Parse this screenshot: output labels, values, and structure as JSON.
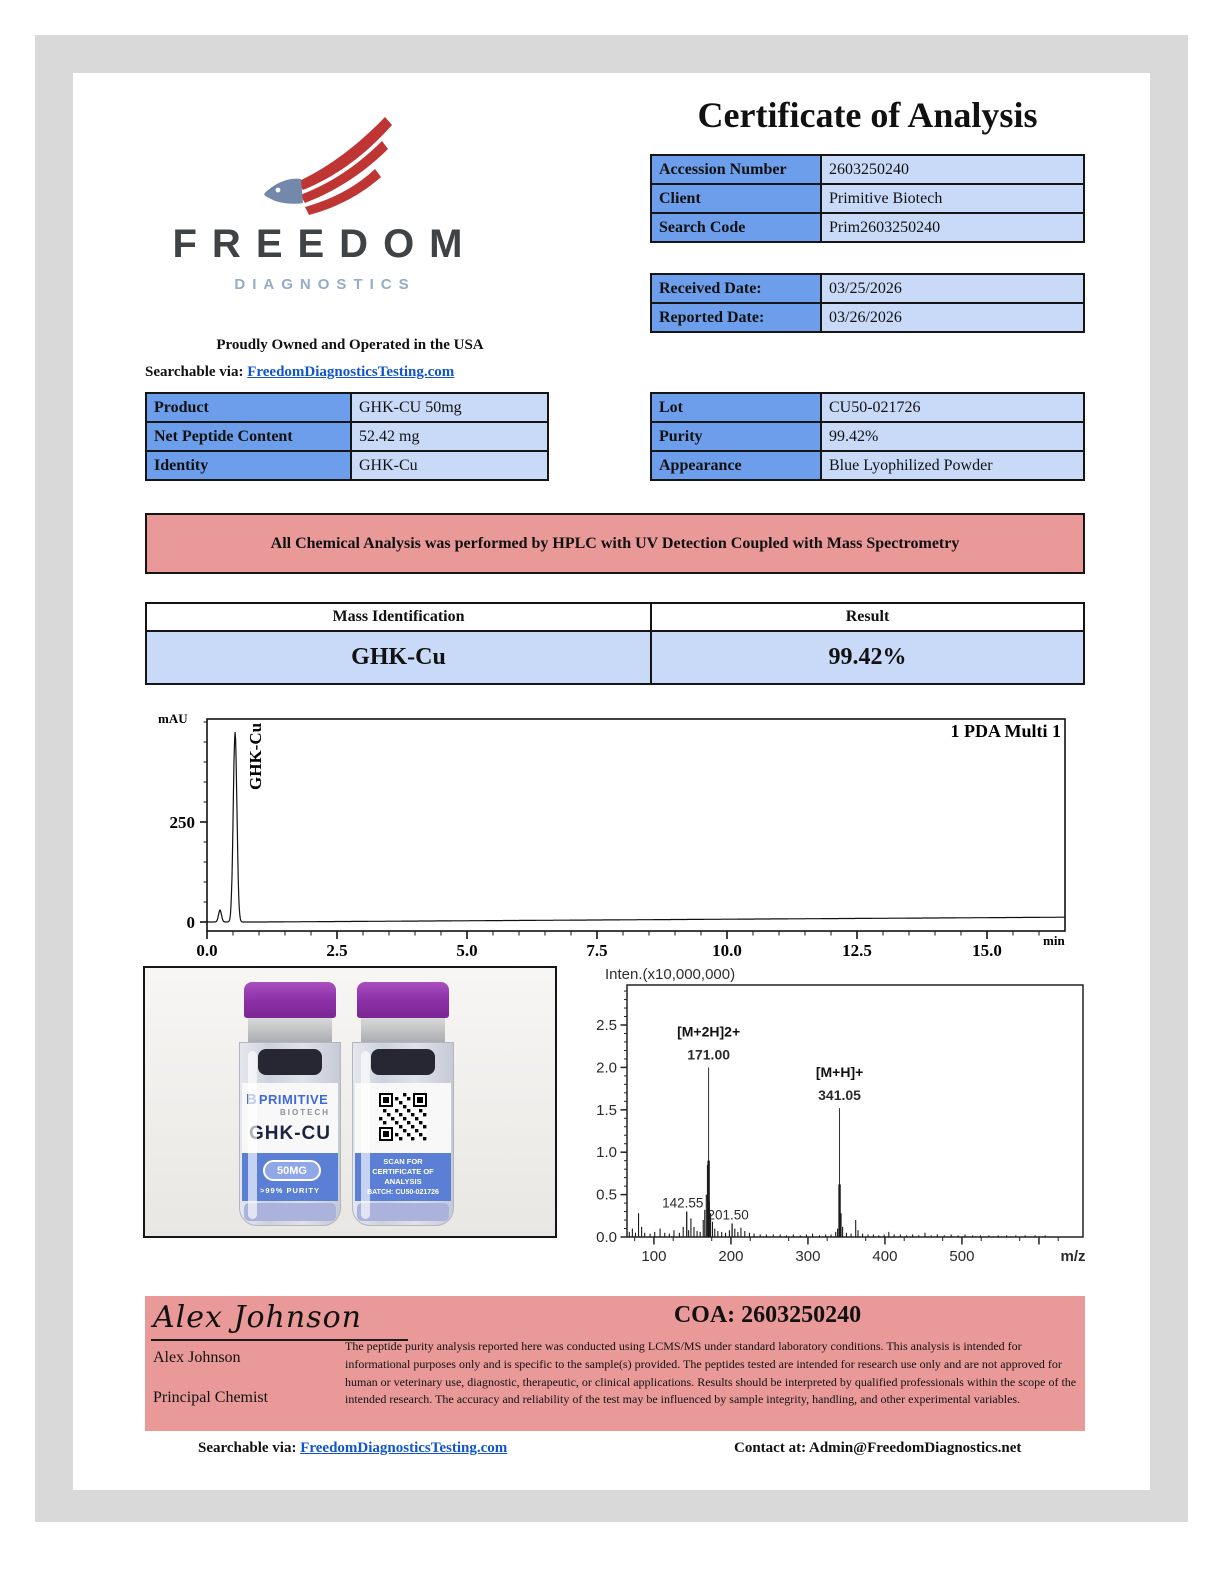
{
  "page": {
    "frame_color": "#d9d9d9",
    "header_blue": "#6d9eeb",
    "cell_blue": "#c9daf8",
    "banner_pink": "#ea9999",
    "link_blue": "#1155cc"
  },
  "header": {
    "title": "Certificate of Analysis",
    "logo": {
      "name": "FREEDOM",
      "subname": "DIAGNOSTICS",
      "tagline": "Proudly Owned and Operated in the USA"
    },
    "searchable_prefix": "Searchable via:",
    "searchable_link": "FreedomDiagnosticsTesting.com"
  },
  "accession_table": {
    "rows": [
      {
        "label": "Accession Number",
        "value": "2603250240"
      },
      {
        "label": "Client",
        "value": "Primitive Biotech"
      },
      {
        "label": "Search Code",
        "value": "Prim2603250240"
      }
    ]
  },
  "dates_table": {
    "rows": [
      {
        "label": "Received Date:",
        "value": "03/25/2026"
      },
      {
        "label": "Reported Date:",
        "value": "03/26/2026"
      }
    ]
  },
  "product_table": {
    "rows": [
      {
        "label": "Product",
        "value": "GHK-CU 50mg"
      },
      {
        "label": "Net Peptide Content",
        "value": "52.42 mg"
      },
      {
        "label": "Identity",
        "value": "GHK-Cu"
      }
    ]
  },
  "lot_table": {
    "rows": [
      {
        "label": "Lot",
        "value": "CU50-021726"
      },
      {
        "label": "Purity",
        "value": "99.42%"
      },
      {
        "label": "Appearance",
        "value": "Blue Lyophilized Powder"
      }
    ]
  },
  "banner": {
    "text": "All Chemical Analysis was performed by HPLC with UV Detection Coupled with Mass Spectrometry"
  },
  "mass_table": {
    "headers": [
      "Mass Identification",
      "Result"
    ],
    "row": [
      "GHK-Cu",
      "99.42%"
    ]
  },
  "chart_data": [
    {
      "type": "line",
      "name": "hplc-uv-chromatogram",
      "ylabel": "mAU",
      "xlabel": "min",
      "legend": "1 PDA Multi 1",
      "xlim": [
        0,
        16.5
      ],
      "ylim": [
        0,
        507
      ],
      "xticks": [
        0.0,
        2.5,
        5.0,
        7.5,
        10.0,
        12.5,
        15.0
      ],
      "yticks": [
        0,
        250
      ],
      "baseline_drift_mAU_at_end": 12,
      "peaks": [
        {
          "rt": 0.25,
          "height_mAU": 30,
          "width_min": 0.04,
          "label": ""
        },
        {
          "rt": 0.54,
          "height_mAU": 475,
          "width_min": 0.05,
          "label": "GHK-Cu"
        }
      ]
    },
    {
      "type": "stick",
      "name": "mass-spectrum",
      "title": "Inten.(x10,000,000)",
      "xlabel": "m/z",
      "xlim": [
        65,
        657
      ],
      "ylim": [
        0,
        2.97
      ],
      "xticks": [
        100,
        200,
        300,
        400,
        500,
        600
      ],
      "xtick_labels": [
        "100",
        "200",
        "300",
        "400",
        "500",
        ""
      ],
      "yticks": [
        0.0,
        0.5,
        1.0,
        1.5,
        2.0,
        2.5
      ],
      "annotated_peaks": [
        {
          "mz": 171.0,
          "intensity": 2.0,
          "base_intensity": 0.9,
          "ion": "[M+2H]2+",
          "label": "171.00"
        },
        {
          "mz": 341.05,
          "intensity": 1.52,
          "base_intensity": 0.62,
          "ion": "[M+H]+",
          "label": "341.05"
        }
      ],
      "labeled_minor_peaks": [
        {
          "mz": 142.55,
          "intensity": 0.3,
          "label": "142.55"
        },
        {
          "mz": 201.5,
          "intensity": 0.16,
          "label": "201.50"
        }
      ],
      "noise_peaks": [
        [
          68,
          0.06
        ],
        [
          72,
          0.1
        ],
        [
          76,
          0.05
        ],
        [
          80,
          0.28
        ],
        [
          84,
          0.12
        ],
        [
          88,
          0.05
        ],
        [
          95,
          0.04
        ],
        [
          101,
          0.06
        ],
        [
          108,
          0.1
        ],
        [
          114,
          0.05
        ],
        [
          120,
          0.04
        ],
        [
          126,
          0.08
        ],
        [
          133,
          0.05
        ],
        [
          138,
          0.12
        ],
        [
          145,
          0.08
        ],
        [
          148,
          0.22
        ],
        [
          152,
          0.12
        ],
        [
          156,
          0.07
        ],
        [
          160,
          0.06
        ],
        [
          164,
          0.2
        ],
        [
          166,
          0.32
        ],
        [
          168,
          0.5
        ],
        [
          169.5,
          0.85
        ],
        [
          172,
          0.42
        ],
        [
          173.5,
          0.28
        ],
        [
          176,
          0.18
        ],
        [
          179,
          0.1
        ],
        [
          183,
          0.07
        ],
        [
          188,
          0.06
        ],
        [
          193,
          0.05
        ],
        [
          198,
          0.08
        ],
        [
          205,
          0.1
        ],
        [
          209,
          0.06
        ],
        [
          213,
          0.11
        ],
        [
          218,
          0.07
        ],
        [
          224,
          0.05
        ],
        [
          230,
          0.04
        ],
        [
          238,
          0.03
        ],
        [
          246,
          0.03
        ],
        [
          255,
          0.03
        ],
        [
          264,
          0.03
        ],
        [
          272,
          0.02
        ],
        [
          281,
          0.03
        ],
        [
          290,
          0.02
        ],
        [
          298,
          0.03
        ],
        [
          306,
          0.04
        ],
        [
          315,
          0.02
        ],
        [
          323,
          0.03
        ],
        [
          330,
          0.03
        ],
        [
          336,
          0.06
        ],
        [
          338.5,
          0.1
        ],
        [
          343,
          0.28
        ],
        [
          345,
          0.12
        ],
        [
          350,
          0.05
        ],
        [
          356,
          0.04
        ],
        [
          362,
          0.2
        ],
        [
          365,
          0.08
        ],
        [
          371,
          0.04
        ],
        [
          378,
          0.03
        ],
        [
          385,
          0.03
        ],
        [
          392,
          0.02
        ],
        [
          399,
          0.03
        ],
        [
          405,
          0.06
        ],
        [
          412,
          0.03
        ],
        [
          420,
          0.03
        ],
        [
          428,
          0.02
        ],
        [
          436,
          0.03
        ],
        [
          444,
          0.02
        ],
        [
          452,
          0.05
        ],
        [
          460,
          0.02
        ],
        [
          468,
          0.03
        ],
        [
          477,
          0.02
        ],
        [
          486,
          0.03
        ],
        [
          495,
          0.02
        ],
        [
          504,
          0.03
        ],
        [
          514,
          0.02
        ],
        [
          524,
          0.02
        ],
        [
          535,
          0.02
        ],
        [
          547,
          0.02
        ],
        [
          558,
          0.02
        ],
        [
          570,
          0.02
        ],
        [
          582,
          0.02
        ],
        [
          595,
          0.02
        ],
        [
          608,
          0.02
        ]
      ]
    }
  ],
  "vial_photo": {
    "brand_mark": "B",
    "brand": "PRIMITIVE",
    "brand_sub": "BIOTECH",
    "product": "GHK-CU",
    "dose": "50MG",
    "purity": ">99% PURITY",
    "scan_line1": "SCAN FOR",
    "scan_line2": "CERTIFICATE OF",
    "scan_line3": "ANALYSIS",
    "batch": "BATCH: CU50-021726"
  },
  "footer": {
    "signature": "Alex Johnson",
    "name": "Alex Johnson",
    "role": "Principal Chemist",
    "coa": "COA: 2603250240",
    "disclaimer": "The peptide purity analysis reported here was conducted using LCMS/MS under standard laboratory conditions. This analysis is intended for informational purposes only and is specific to the sample(s) provided. The peptides tested are intended for research use only and are not approved for human or veterinary use, diagnostic, therapeutic, or clinical applications. Results should be interpreted by qualified professionals within the scope of the intended research. The accuracy and reliability of the test may be influenced by sample integrity, handling, and other experimental variables.",
    "searchable_prefix": "Searchable via:",
    "searchable_link": "FreedomDiagnosticsTesting.com",
    "contact": "Contact at: Admin@FreedomDiagnostics.net"
  }
}
